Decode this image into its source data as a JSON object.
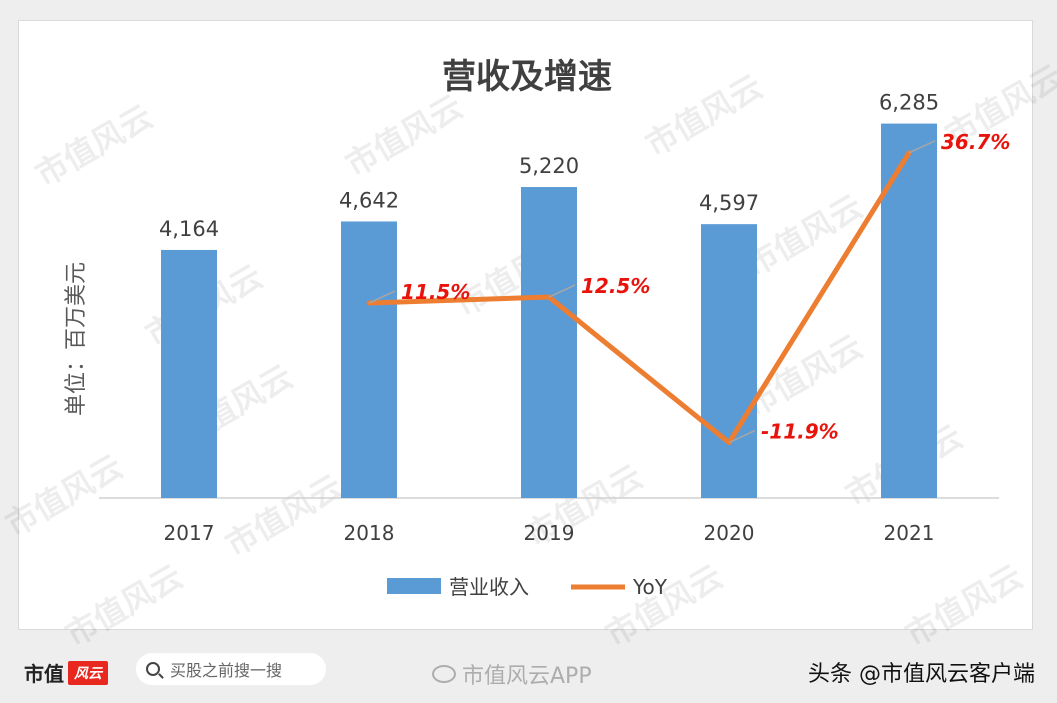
{
  "chart_data": {
    "type": "bar+line",
    "title": "营收及增速",
    "ylabel": "单位：百万美元",
    "categories": [
      "2017",
      "2018",
      "2019",
      "2020",
      "2021"
    ],
    "series": [
      {
        "name": "营业收入",
        "type": "bar",
        "color": "#5b9bd5",
        "values": [
          4164,
          4642,
          5220,
          4597,
          6285
        ],
        "labels": [
          "4,164",
          "4,642",
          "5,220",
          "4,597",
          "6,285"
        ]
      },
      {
        "name": "YoY",
        "type": "line",
        "color": "#ed7d31",
        "values": [
          null,
          11.5,
          12.5,
          -11.9,
          36.7
        ],
        "labels": [
          "",
          "11.5%",
          "12.5%",
          "-11.9%",
          "36.7%"
        ],
        "label_color": "#e8140c"
      }
    ],
    "bar_ylim": [
      0,
      7000
    ],
    "line_ylim": [
      -15,
      37
    ],
    "legend": "bottom",
    "grid": false
  },
  "watermark": "市值风云",
  "footer": {
    "brand": "市值",
    "brand_mark": "风云",
    "search_text": "买股之前搜一搜",
    "center_watermark": "市值风云APP",
    "source": "头条 @市值风云客户端"
  }
}
